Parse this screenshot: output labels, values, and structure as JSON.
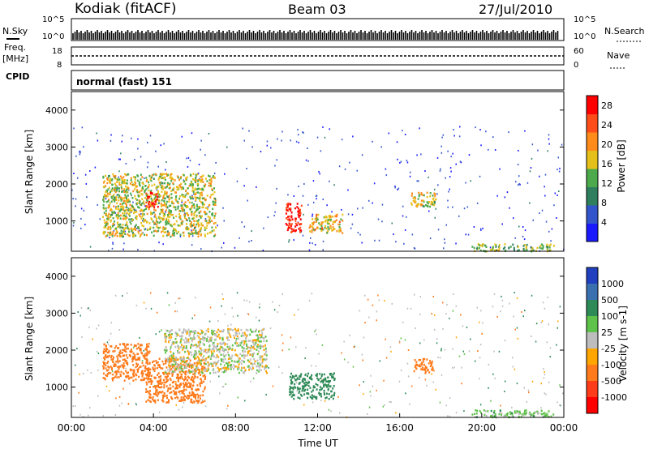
{
  "header": {
    "station": "Kodiak (fitACF)",
    "beam": "Beam 03",
    "date": "27/Jul/2010"
  },
  "status_panels": {
    "nsky_label": "N.Sky",
    "nsky_ticks": [
      "10^5",
      "10^0"
    ],
    "nsearch_label": "N.Search",
    "nsearch_ticks": [
      "10^5",
      "10^0"
    ],
    "freq_label": "Freq.",
    "freq_unit": "[MHz]",
    "freq_ticks": [
      "18",
      "8"
    ],
    "nave_label": "Nave",
    "nave_ticks": [
      "60",
      "0"
    ],
    "cpid_label": "CPID",
    "cpid_value": "normal (fast) 151"
  },
  "colors": {
    "power_scale": [
      "#1a1aff",
      "#3355cc",
      "#2f7f5f",
      "#4caa4c",
      "#e6c01a",
      "#ff8c1a",
      "#ff4d1a",
      "#ff0000"
    ],
    "velocity_scale": [
      "#2040c0",
      "#3a6fb0",
      "#2e8a57",
      "#5fc24a",
      "#bdbdbd",
      "#ffa500",
      "#ff7a1a",
      "#ff3c1a",
      "#ff0000"
    ]
  },
  "chart_data": [
    {
      "type": "heatmap",
      "panel": "power",
      "ylabel": "Slant Range [km]",
      "yticks": [
        "1000",
        "2000",
        "3000",
        "4000"
      ],
      "ylim": [
        180,
        4500
      ],
      "xlim_hours": [
        0,
        24
      ],
      "colorbar_label": "Power [dB]",
      "colorbar_ticks": [
        "4",
        "8",
        "12",
        "16",
        "20",
        "24",
        "28"
      ],
      "colorbar_range": [
        0,
        30
      ],
      "features": [
        {
          "t_start": 1.5,
          "t_end": 7.0,
          "range_start": 600,
          "range_end": 2300,
          "level": 16
        },
        {
          "t_start": 3.6,
          "t_end": 4.2,
          "range_start": 1400,
          "range_end": 1800,
          "level": 28
        },
        {
          "t_start": 10.4,
          "t_end": 11.2,
          "range_start": 700,
          "range_end": 1500,
          "level": 28
        },
        {
          "t_start": 11.5,
          "t_end": 13.2,
          "range_start": 700,
          "range_end": 1200,
          "level": 18
        },
        {
          "t_start": 16.5,
          "t_end": 17.8,
          "range_start": 1400,
          "range_end": 1800,
          "level": 16
        },
        {
          "t_start": 19.5,
          "t_end": 23.5,
          "range_start": 200,
          "range_end": 400,
          "level": 14
        }
      ]
    },
    {
      "type": "heatmap",
      "panel": "velocity",
      "ylabel": "Slant Range [km]",
      "yticks": [
        "1000",
        "2000",
        "3000",
        "4000"
      ],
      "ylim": [
        180,
        4500
      ],
      "xlim_hours": [
        0,
        24
      ],
      "xlabel": "Time UT",
      "xticks": [
        "00:00",
        "04:00",
        "08:00",
        "12:00",
        "16:00",
        "20:00",
        "00:00"
      ],
      "colorbar_label": "Velocity [m s-1]",
      "colorbar_ticks": [
        "1000",
        "500",
        "100",
        "25",
        "-25",
        "-100",
        "-500",
        "-1000"
      ],
      "features": [
        {
          "t_start": 1.5,
          "t_end": 3.8,
          "range_start": 1200,
          "range_end": 2200,
          "velocity": -300
        },
        {
          "t_start": 3.6,
          "t_end": 6.5,
          "range_start": 600,
          "range_end": 1800,
          "velocity": -300
        },
        {
          "t_start": 4.5,
          "t_end": 9.5,
          "range_start": 1400,
          "range_end": 2600,
          "velocity": 0
        },
        {
          "t_start": 10.6,
          "t_end": 12.8,
          "range_start": 700,
          "range_end": 1400,
          "velocity": 300
        },
        {
          "t_start": 16.6,
          "t_end": 17.6,
          "range_start": 1400,
          "range_end": 1800,
          "velocity": -300
        },
        {
          "t_start": 19.5,
          "t_end": 23.5,
          "range_start": 200,
          "range_end": 400,
          "velocity": 60
        }
      ]
    }
  ]
}
